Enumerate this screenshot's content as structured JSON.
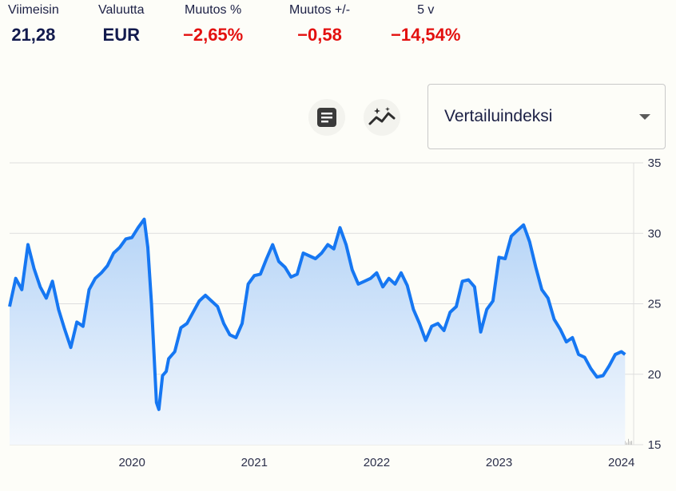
{
  "stats": [
    {
      "label": "Viimeisin",
      "value": "21,28",
      "tone": "pos"
    },
    {
      "label": "Valuutta",
      "value": "EUR",
      "tone": "pos"
    },
    {
      "label": "Muutos %",
      "value": "−2,65%",
      "tone": "neg"
    },
    {
      "label": "Muutos +/-",
      "value": "−0,58",
      "tone": "neg"
    },
    {
      "label": "5 v",
      "value": "−14,54%",
      "tone": "neg"
    }
  ],
  "toolbar": {
    "icons": [
      "document-icon",
      "sparkle-chart-icon"
    ]
  },
  "index_select": {
    "label": "Vertailuindeksi"
  },
  "colors": {
    "line": "#1677f2",
    "fill_top": "#b5d4f7",
    "fill_bottom": "#f4f8fd",
    "grid": "#dedede",
    "volume": "#b8b8b8",
    "negative": "#e3100f",
    "text": "#121a4d"
  },
  "chart_data": {
    "type": "line",
    "currency": "EUR",
    "y_ticks": [
      15,
      20,
      25,
      30,
      35
    ],
    "ylim": [
      15,
      35
    ],
    "x_ticks": [
      "2020",
      "2021",
      "2022",
      "2023",
      "2024"
    ],
    "xlim": [
      2019.0,
      2024.1
    ],
    "grid": true,
    "series": [
      {
        "x": [
          2019.0,
          2019.05,
          2019.1,
          2019.15,
          2019.2,
          2019.25,
          2019.3,
          2019.35,
          2019.4,
          2019.45,
          2019.5,
          2019.55,
          2019.6,
          2019.65,
          2019.7,
          2019.75,
          2019.8,
          2019.85,
          2019.9,
          2019.95,
          2020.0,
          2020.05,
          2020.1,
          2020.13,
          2020.16,
          2020.18,
          2020.2,
          2020.22,
          2020.25,
          2020.28,
          2020.3,
          2020.35,
          2020.4,
          2020.45,
          2020.5,
          2020.55,
          2020.6,
          2020.65,
          2020.7,
          2020.75,
          2020.8,
          2020.85,
          2020.9,
          2020.95,
          2021.0,
          2021.05,
          2021.1,
          2021.15,
          2021.2,
          2021.25,
          2021.3,
          2021.35,
          2021.4,
          2021.45,
          2021.5,
          2021.55,
          2021.6,
          2021.65,
          2021.7,
          2021.75,
          2021.8,
          2021.85,
          2021.9,
          2021.95,
          2022.0,
          2022.05,
          2022.1,
          2022.15,
          2022.2,
          2022.25,
          2022.3,
          2022.35,
          2022.4,
          2022.45,
          2022.5,
          2022.55,
          2022.6,
          2022.65,
          2022.7,
          2022.75,
          2022.8,
          2022.85,
          2022.9,
          2022.95,
          2023.0,
          2023.05,
          2023.1,
          2023.15,
          2023.2,
          2023.25,
          2023.3,
          2023.35,
          2023.4,
          2023.45,
          2023.5,
          2023.55,
          2023.6,
          2023.65,
          2023.7,
          2023.75,
          2023.8,
          2023.85,
          2023.9,
          2023.95,
          2024.0,
          2024.03
        ],
        "y": [
          24.8,
          26.8,
          26.0,
          29.2,
          27.5,
          26.2,
          25.4,
          26.6,
          24.6,
          23.2,
          21.9,
          23.7,
          23.4,
          26.0,
          26.8,
          27.2,
          27.7,
          28.6,
          29.0,
          29.6,
          29.7,
          30.4,
          31.0,
          29.0,
          25.0,
          21.5,
          18.0,
          17.5,
          19.9,
          20.2,
          21.1,
          21.6,
          23.3,
          23.6,
          24.4,
          25.2,
          25.6,
          25.2,
          24.8,
          23.6,
          22.8,
          22.6,
          23.6,
          26.4,
          27.0,
          27.1,
          28.2,
          29.2,
          28.0,
          27.6,
          26.9,
          27.1,
          28.6,
          28.4,
          28.2,
          28.6,
          29.2,
          28.9,
          30.4,
          29.2,
          27.4,
          26.4,
          26.6,
          26.8,
          27.2,
          26.2,
          26.8,
          26.4,
          27.2,
          26.3,
          24.6,
          23.6,
          22.4,
          23.4,
          23.6,
          23.1,
          24.4,
          24.8,
          26.6,
          26.7,
          26.2,
          23.0,
          24.6,
          25.2,
          28.3,
          28.2,
          29.8,
          30.2,
          30.6,
          29.4,
          27.6,
          26.0,
          25.4,
          23.9,
          23.2,
          22.3,
          22.6,
          21.4,
          21.2,
          20.4,
          19.8,
          19.9,
          20.6,
          21.4,
          21.6,
          21.4
        ]
      }
    ],
    "volume_note": "small gray volume bars along the bottom"
  }
}
